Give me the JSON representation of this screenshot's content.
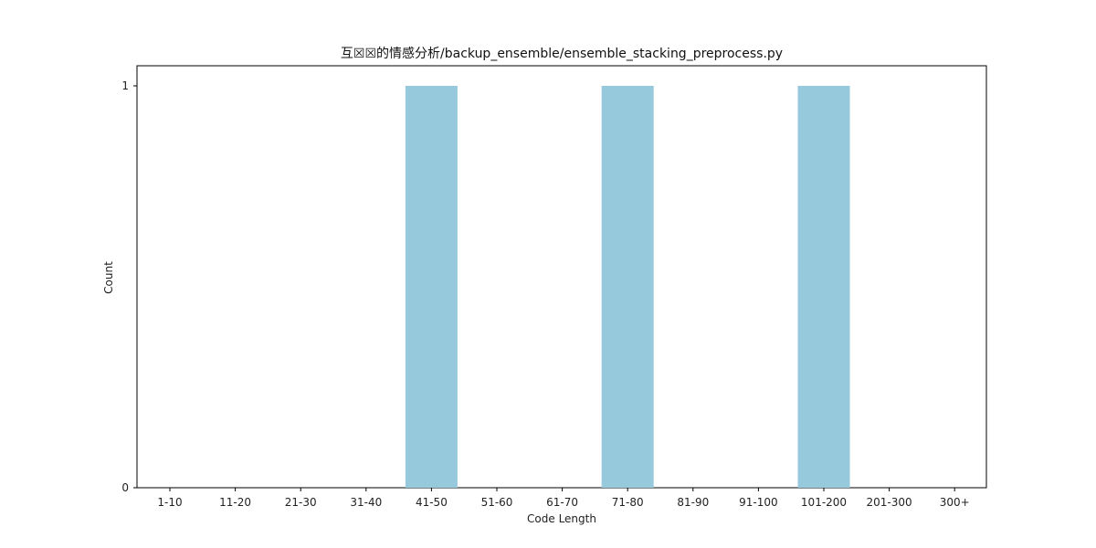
{
  "chart_data": {
    "type": "bar",
    "title": "互☒☒的情感分析/backup_ensemble/ensemble_stacking_preprocess.py",
    "xlabel": "Code Length",
    "ylabel": "Count",
    "categories": [
      "1-10",
      "11-20",
      "21-30",
      "31-40",
      "41-50",
      "51-60",
      "61-70",
      "71-80",
      "81-90",
      "91-100",
      "101-200",
      "201-300",
      "300+"
    ],
    "values": [
      0,
      0,
      0,
      0,
      1,
      0,
      0,
      1,
      0,
      0,
      1,
      0,
      0
    ],
    "ylim": [
      0,
      1.05
    ],
    "yticks": [
      0,
      1
    ],
    "bar_color": "#96c9dc",
    "grid": false,
    "legend": "none"
  }
}
